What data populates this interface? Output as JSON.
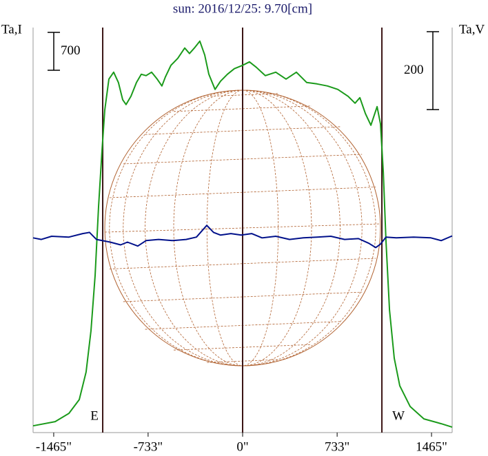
{
  "chart_data": {
    "type": "line",
    "title": "sun: 2016/12/25: 9.70[cm]",
    "ylabel": "Ta,I",
    "y2label": "Ta,V",
    "xlim": [
      -1625,
      1625
    ],
    "ylim": [
      -100,
      7380
    ],
    "y2lim": [
      -500,
      540
    ],
    "xticks": [
      {
        "value": -1465,
        "label": "-1465\""
      },
      {
        "value": -733,
        "label": "-733\""
      },
      {
        "value": 0,
        "label": "0\""
      },
      {
        "value": 733,
        "label": "733\""
      },
      {
        "value": 1465,
        "label": "1465\""
      }
    ],
    "scale_bars": [
      {
        "axis": "y",
        "value": 700
      },
      {
        "axis": "y2",
        "value": 200
      }
    ],
    "markers": [
      {
        "x": -1085,
        "label": "E"
      },
      {
        "x": 0
      },
      {
        "x": 1080,
        "label": "W"
      }
    ],
    "series": [
      {
        "name": "I",
        "color": "#1a9a1a",
        "axis": "y",
        "x": [
          -1625,
          -1454,
          -1347,
          -1267,
          -1214,
          -1176,
          -1144,
          -1117,
          -1091,
          -1069,
          -1037,
          -1000,
          -963,
          -930,
          -904,
          -866,
          -823,
          -786,
          -749,
          -706,
          -663,
          -626,
          -599,
          -556,
          -503,
          -449,
          -412,
          -374,
          -332,
          -294,
          -262,
          -214,
          -171,
          -118,
          -64,
          0,
          53,
          107,
          176,
          257,
          337,
          417,
          497,
          577,
          658,
          738,
          818,
          872,
          909,
          952,
          995,
          1016,
          1043,
          1069,
          1091,
          1112,
          1139,
          1176,
          1219,
          1299,
          1406,
          1540,
          1625
        ],
        "values": [
          25,
          102,
          255,
          509,
          1018,
          1782,
          2801,
          4074,
          5092,
          5856,
          6429,
          6556,
          6365,
          6047,
          5958,
          6110,
          6365,
          6518,
          6492,
          6556,
          6429,
          6301,
          6467,
          6683,
          6811,
          7002,
          6900,
          7002,
          7129,
          6874,
          6518,
          6238,
          6390,
          6518,
          6620,
          6683,
          6747,
          6645,
          6492,
          6556,
          6429,
          6556,
          6365,
          6339,
          6301,
          6238,
          6110,
          5983,
          6085,
          5792,
          5576,
          5729,
          5920,
          5601,
          4710,
          3437,
          2164,
          1273,
          764,
          382,
          153,
          64,
          0
        ]
      },
      {
        "name": "V",
        "color": "#00108a",
        "axis": "y2",
        "x": [
          -1625,
          -1561,
          -1481,
          -1347,
          -1240,
          -1187,
          -1134,
          -1027,
          -946,
          -893,
          -813,
          -749,
          -652,
          -545,
          -438,
          -358,
          -278,
          -225,
          -171,
          -91,
          -11,
          70,
          150,
          257,
          364,
          471,
          577,
          684,
          791,
          898,
          979,
          1032,
          1069,
          1112,
          1192,
          1326,
          1460,
          1540,
          1625
        ],
        "values": [
          0,
          -4,
          4,
          2,
          11,
          14,
          -4,
          -11,
          -18,
          -11,
          -21,
          -7,
          -4,
          -7,
          -4,
          2,
          32,
          14,
          7,
          11,
          7,
          11,
          0,
          4,
          -4,
          0,
          2,
          4,
          -4,
          -2,
          -14,
          -25,
          -16,
          2,
          0,
          2,
          0,
          -7,
          5
        ]
      }
    ]
  }
}
